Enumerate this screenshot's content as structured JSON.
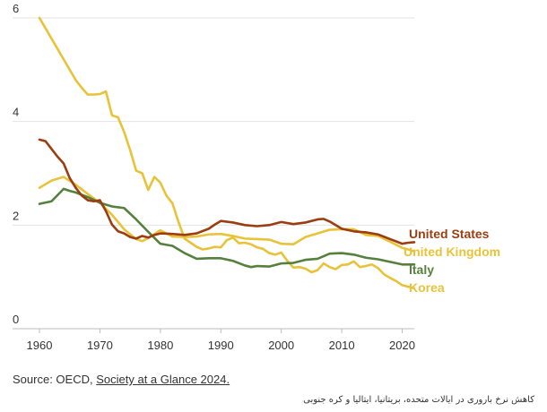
{
  "chart_data": {
    "type": "line",
    "title": "",
    "xlabel": "",
    "ylabel": "",
    "xlim": [
      1960,
      2022
    ],
    "ylim": [
      0,
      6
    ],
    "x_ticks": [
      "1960",
      "1970",
      "1980",
      "1990",
      "2000",
      "2010",
      "2020"
    ],
    "y_ticks": [
      "0",
      "2",
      "4",
      "6"
    ],
    "grid": true,
    "series": [
      {
        "name": "Korea",
        "label": "Korea",
        "color": "#e8c33a",
        "x": [
          1960,
          1961,
          1962,
          1963,
          1964,
          1965,
          1966,
          1967,
          1968,
          1969,
          1970,
          1971,
          1972,
          1973,
          1974,
          1975,
          1976,
          1977,
          1978,
          1979,
          1980,
          1981,
          1982,
          1983,
          1984,
          1985,
          1986,
          1987,
          1988,
          1989,
          1990,
          1991,
          1992,
          1993,
          1994,
          1995,
          1996,
          1997,
          1998,
          1999,
          2000,
          2001,
          2002,
          2003,
          2004,
          2005,
          2006,
          2007,
          2008,
          2009,
          2010,
          2011,
          2012,
          2013,
          2014,
          2015,
          2016,
          2017,
          2018,
          2019,
          2020,
          2021,
          2022
        ],
        "values": [
          6.0,
          5.8,
          5.6,
          5.4,
          5.2,
          5.0,
          4.8,
          4.65,
          4.52,
          4.52,
          4.53,
          4.58,
          4.12,
          4.08,
          3.8,
          3.45,
          3.05,
          3.0,
          2.68,
          2.93,
          2.82,
          2.57,
          2.42,
          2.06,
          1.74,
          1.66,
          1.58,
          1.53,
          1.55,
          1.58,
          1.57,
          1.71,
          1.76,
          1.65,
          1.66,
          1.63,
          1.57,
          1.54,
          1.46,
          1.43,
          1.47,
          1.31,
          1.18,
          1.19,
          1.16,
          1.09,
          1.13,
          1.26,
          1.19,
          1.15,
          1.23,
          1.24,
          1.3,
          1.19,
          1.21,
          1.24,
          1.17,
          1.05,
          0.98,
          0.92,
          0.84,
          0.81,
          0.78
        ]
      },
      {
        "name": "United Kingdom",
        "label": "United Kingdom",
        "color": "#e8c33a",
        "x": [
          1960,
          1962,
          1964,
          1966,
          1968,
          1970,
          1972,
          1974,
          1976,
          1977,
          1978,
          1980,
          1982,
          1984,
          1986,
          1988,
          1990,
          1992,
          1994,
          1996,
          1998,
          2000,
          2002,
          2004,
          2006,
          2008,
          2010,
          2012,
          2014,
          2016,
          2018,
          2020,
          2021,
          2022
        ],
        "values": [
          2.72,
          2.86,
          2.93,
          2.78,
          2.6,
          2.43,
          2.2,
          1.92,
          1.73,
          1.69,
          1.75,
          1.9,
          1.78,
          1.77,
          1.78,
          1.82,
          1.83,
          1.79,
          1.74,
          1.73,
          1.72,
          1.64,
          1.63,
          1.77,
          1.84,
          1.91,
          1.92,
          1.92,
          1.81,
          1.79,
          1.68,
          1.56,
          1.53,
          1.49
        ]
      },
      {
        "name": "Italy",
        "label": "Italy",
        "color": "#55803e",
        "x": [
          1960,
          1962,
          1964,
          1965,
          1966,
          1968,
          1970,
          1972,
          1974,
          1976,
          1978,
          1980,
          1982,
          1984,
          1986,
          1988,
          1990,
          1992,
          1994,
          1995,
          1996,
          1998,
          2000,
          2002,
          2004,
          2006,
          2008,
          2010,
          2012,
          2014,
          2016,
          2018,
          2020,
          2022
        ],
        "values": [
          2.41,
          2.46,
          2.7,
          2.66,
          2.63,
          2.54,
          2.43,
          2.36,
          2.33,
          2.11,
          1.87,
          1.64,
          1.6,
          1.46,
          1.35,
          1.36,
          1.36,
          1.31,
          1.22,
          1.19,
          1.21,
          1.2,
          1.26,
          1.27,
          1.33,
          1.35,
          1.45,
          1.46,
          1.43,
          1.37,
          1.34,
          1.29,
          1.24,
          1.24
        ]
      },
      {
        "name": "United States",
        "label": "United States",
        "color": "#9b3d11",
        "x": [
          1960,
          1961,
          1962,
          1963,
          1964,
          1965,
          1966,
          1967,
          1968,
          1969,
          1970,
          1971,
          1972,
          1973,
          1974,
          1975,
          1976,
          1977,
          1978,
          1979,
          1980,
          1982,
          1984,
          1986,
          1988,
          1989,
          1990,
          1992,
          1994,
          1996,
          1998,
          2000,
          2002,
          2004,
          2006,
          2007,
          2008,
          2010,
          2012,
          2014,
          2016,
          2018,
          2020,
          2021,
          2022
        ],
        "values": [
          3.65,
          3.62,
          3.47,
          3.32,
          3.19,
          2.91,
          2.72,
          2.57,
          2.48,
          2.46,
          2.48,
          2.27,
          2.01,
          1.88,
          1.84,
          1.77,
          1.74,
          1.79,
          1.76,
          1.81,
          1.84,
          1.83,
          1.81,
          1.84,
          1.93,
          2.01,
          2.08,
          2.05,
          2.0,
          1.98,
          2.0,
          2.06,
          2.02,
          2.05,
          2.11,
          2.12,
          2.07,
          1.93,
          1.88,
          1.86,
          1.82,
          1.73,
          1.64,
          1.66,
          1.67
        ]
      }
    ]
  },
  "source": {
    "prefix": "Source: OECD,",
    "link": "Society at a Glance 2024."
  },
  "caption": "کاهش نرخ باروری در ایالات متحده، بریتانیا، ایتالیا و کره جنوبی"
}
